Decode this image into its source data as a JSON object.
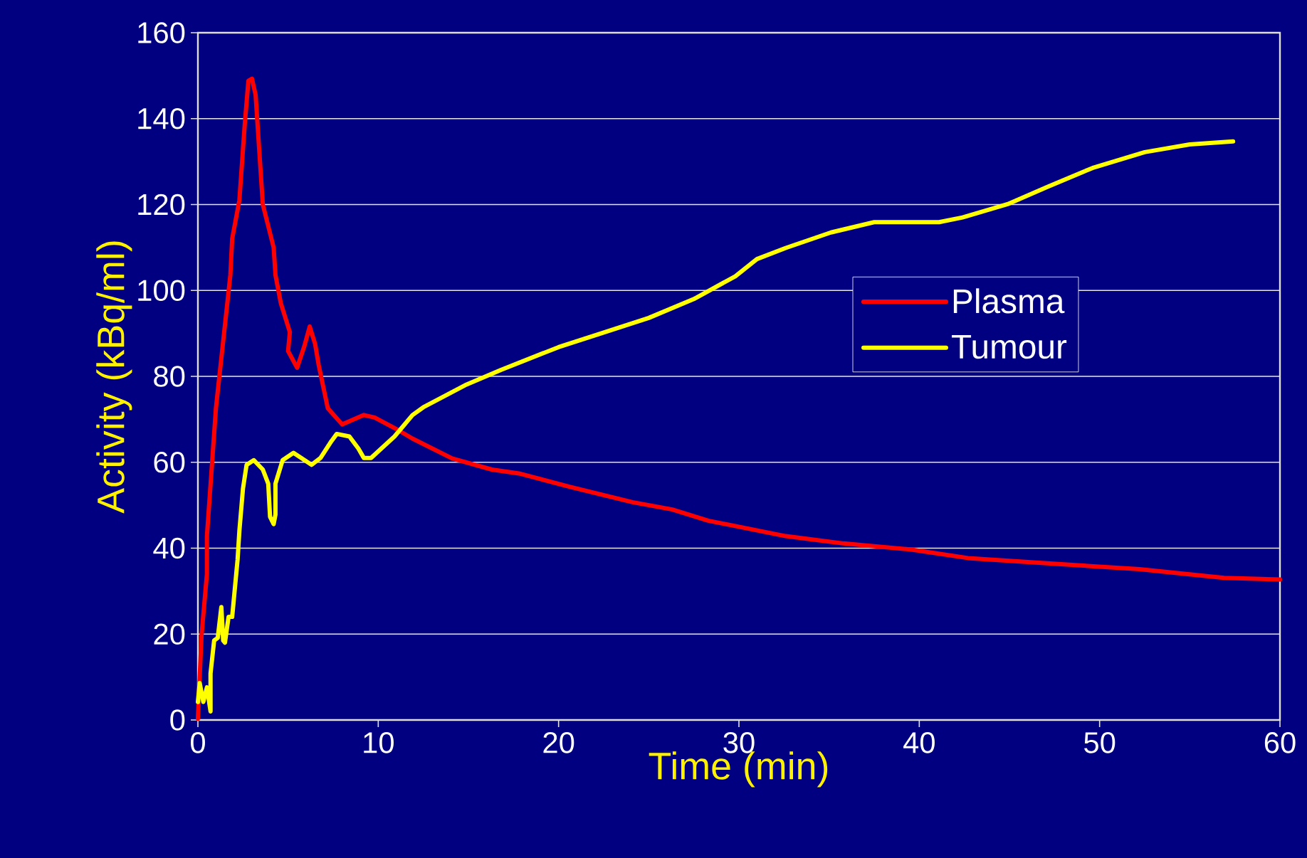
{
  "chart_data": {
    "type": "line",
    "xlabel": "Time (min)",
    "ylabel": "Activity (kBq/ml)",
    "xlim": [
      0,
      60
    ],
    "ylim": [
      0,
      160
    ],
    "xticks": [
      0,
      10,
      20,
      30,
      40,
      50,
      60
    ],
    "yticks": [
      0,
      20,
      40,
      60,
      80,
      100,
      120,
      140,
      160
    ],
    "grid": "y",
    "legend": "right",
    "line_style": "solid",
    "marker": "none",
    "series": [
      {
        "name": "Plasma",
        "color": "#ff0000",
        "x": [
          0,
          0.2,
          0.5,
          0.5,
          1.0,
          1.8,
          1.9,
          2.3,
          2.6,
          2.7,
          2.8,
          3.0,
          3.2,
          3.6,
          4.2,
          4.3,
          4.6,
          5.1,
          5.0,
          5.5,
          5.9,
          6.2,
          6.5,
          6.7,
          7.2,
          8.0,
          9.2,
          9.8,
          11.1,
          11.9,
          14.1,
          16.3,
          17.8,
          20.6,
          24.1,
          26.3,
          28.3,
          32.6,
          35.8,
          39.5,
          42.7,
          47.4,
          52.2,
          56.9,
          60
        ],
        "values": [
          0.3,
          19.6,
          34,
          42.8,
          72.6,
          103.6,
          112,
          121,
          138.8,
          143.8,
          148.8,
          149.3,
          145.5,
          120,
          110,
          103.6,
          97,
          90.3,
          85.9,
          82,
          87,
          91.6,
          87.5,
          82.6,
          72.6,
          68.8,
          71,
          70.4,
          67.5,
          65.5,
          60.9,
          58.3,
          57.4,
          54.3,
          50.7,
          49,
          46.4,
          42.8,
          41.1,
          39.7,
          37.7,
          36.4,
          35.1,
          33.1,
          32.7
        ]
      },
      {
        "name": "Tumour",
        "color": "#ffff00",
        "x": [
          0,
          0.1,
          0.3,
          0.5,
          0.7,
          0.7,
          0.9,
          1.1,
          1.3,
          1.4,
          1.5,
          1.7,
          1.9,
          2.2,
          2.3,
          2.5,
          2.7,
          3.1,
          3.6,
          3.9,
          4.0,
          4.2,
          4.3,
          4.3,
          4.7,
          5.3,
          6.3,
          6.8,
          7.4,
          7.7,
          8.4,
          8.9,
          9.2,
          9.6,
          10.9,
          11.9,
          12.5,
          14.9,
          16.8,
          20,
          22.2,
          25,
          27.5,
          29.8,
          31,
          32.6,
          35.1,
          37.5,
          41.1,
          42.4,
          44.9,
          47.1,
          49.6,
          52.5,
          55,
          57.4
        ],
        "values": [
          4.2,
          8.6,
          4.2,
          7.6,
          2,
          10.8,
          18.5,
          19.1,
          26.3,
          18.5,
          18,
          24,
          24,
          37.3,
          44,
          53.9,
          59.4,
          60.5,
          58.3,
          55,
          47.3,
          45.6,
          47.8,
          55,
          60.5,
          62.2,
          59.4,
          61,
          64.9,
          66.6,
          66,
          63.2,
          61,
          61,
          66,
          71,
          72.8,
          78.1,
          81.5,
          86.8,
          89.8,
          93.6,
          98,
          103.3,
          107.3,
          109.9,
          113.5,
          115.9,
          115.9,
          117,
          120.1,
          124.1,
          128.5,
          132.2,
          134,
          134.7
        ]
      }
    ]
  }
}
